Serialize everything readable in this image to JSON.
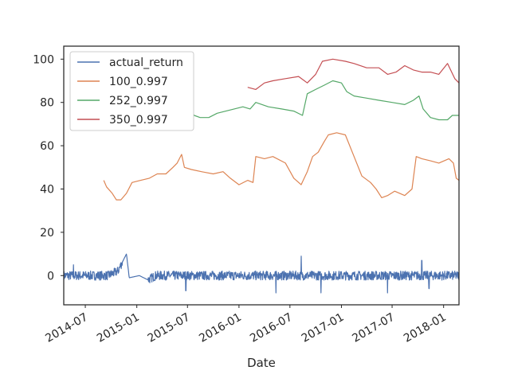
{
  "chart_data": {
    "type": "line",
    "title": "",
    "xlabel": "Date",
    "ylabel": "",
    "x_range": [
      "2014-04-15",
      "2018-02-25"
    ],
    "ylim": [
      -13.5,
      106
    ],
    "grid": false,
    "legend_position": "top-left",
    "x_tick_labels": [
      "2014-07",
      "2015-01",
      "2015-07",
      "2016-01",
      "2016-07",
      "2017-01",
      "2017-07",
      "2018-01"
    ],
    "x_tick_dates": [
      "2014-07-01",
      "2015-01-01",
      "2015-07-01",
      "2016-01-01",
      "2016-07-01",
      "2017-01-01",
      "2017-07-01",
      "2018-01-01"
    ],
    "y_ticks": [
      0,
      20,
      40,
      60,
      80,
      100
    ],
    "series": [
      {
        "name": "actual_return",
        "color": "#4c72b0",
        "noise": true,
        "points": [
          [
            "2014-04-15",
            0
          ],
          [
            "2014-09-20",
            0
          ],
          [
            "2014-10-25",
            2
          ],
          [
            "2014-11-25",
            10
          ],
          [
            "2014-12-05",
            -1
          ],
          [
            "2015-01-10",
            0
          ],
          [
            "2015-02-10",
            -2
          ],
          [
            "2015-03-10",
            0
          ],
          [
            "2016-06-01",
            0
          ],
          [
            "2016-12-15",
            0
          ],
          [
            "2017-06-01",
            0
          ],
          [
            "2018-02-25",
            0
          ]
        ],
        "spikes": [
          [
            "2014-05-20",
            5
          ],
          [
            "2015-06-25",
            -7
          ],
          [
            "2016-05-12",
            -8
          ],
          [
            "2016-08-10",
            9
          ],
          [
            "2016-10-20",
            -8
          ],
          [
            "2017-06-15",
            -8
          ],
          [
            "2017-10-15",
            7
          ],
          [
            "2017-11-10",
            -6
          ]
        ]
      },
      {
        "name": "100_0.997",
        "color": "#dd8452",
        "points": [
          [
            "2014-09-05",
            44
          ],
          [
            "2014-09-15",
            41
          ],
          [
            "2014-10-05",
            38
          ],
          [
            "2014-10-20",
            35
          ],
          [
            "2014-11-05",
            35
          ],
          [
            "2014-11-25",
            38
          ],
          [
            "2014-12-15",
            43
          ],
          [
            "2015-01-15",
            44
          ],
          [
            "2015-02-15",
            45
          ],
          [
            "2015-03-15",
            47
          ],
          [
            "2015-04-15",
            47
          ],
          [
            "2015-05-10",
            50
          ],
          [
            "2015-05-25",
            52
          ],
          [
            "2015-06-10",
            56
          ],
          [
            "2015-06-20",
            50
          ],
          [
            "2015-07-15",
            49
          ],
          [
            "2015-08-20",
            48
          ],
          [
            "2015-10-01",
            47
          ],
          [
            "2015-11-05",
            48
          ],
          [
            "2015-12-01",
            45
          ],
          [
            "2016-01-01",
            42
          ],
          [
            "2016-02-01",
            44
          ],
          [
            "2016-02-20",
            43
          ],
          [
            "2016-03-01",
            55
          ],
          [
            "2016-04-01",
            54
          ],
          [
            "2016-05-01",
            55
          ],
          [
            "2016-06-15",
            52
          ],
          [
            "2016-07-15",
            45
          ],
          [
            "2016-08-10",
            42
          ],
          [
            "2016-09-01",
            48
          ],
          [
            "2016-09-20",
            55
          ],
          [
            "2016-10-10",
            57
          ],
          [
            "2016-11-01",
            62
          ],
          [
            "2016-11-15",
            65
          ],
          [
            "2016-12-15",
            66
          ],
          [
            "2017-01-15",
            65
          ],
          [
            "2017-02-15",
            55
          ],
          [
            "2017-03-15",
            46
          ],
          [
            "2017-04-15",
            43
          ],
          [
            "2017-05-05",
            40
          ],
          [
            "2017-05-25",
            36
          ],
          [
            "2017-06-15",
            37
          ],
          [
            "2017-07-10",
            39
          ],
          [
            "2017-08-15",
            37
          ],
          [
            "2017-09-10",
            40
          ],
          [
            "2017-09-25",
            55
          ],
          [
            "2017-10-15",
            54
          ],
          [
            "2017-11-15",
            53
          ],
          [
            "2017-12-15",
            52
          ],
          [
            "2018-01-20",
            54
          ],
          [
            "2018-02-05",
            52
          ],
          [
            "2018-02-15",
            45
          ],
          [
            "2018-02-25",
            44
          ]
        ]
      },
      {
        "name": "252_0.997",
        "color": "#55a868",
        "points": [
          [
            "2015-07-10",
            77
          ],
          [
            "2015-07-25",
            74
          ],
          [
            "2015-08-15",
            73
          ],
          [
            "2015-09-15",
            73
          ],
          [
            "2015-10-15",
            75
          ],
          [
            "2015-11-15",
            76
          ],
          [
            "2015-12-15",
            77
          ],
          [
            "2016-01-15",
            78
          ],
          [
            "2016-02-10",
            77
          ],
          [
            "2016-03-01",
            80
          ],
          [
            "2016-04-15",
            78
          ],
          [
            "2016-06-01",
            77
          ],
          [
            "2016-07-15",
            76
          ],
          [
            "2016-08-15",
            74
          ],
          [
            "2016-09-01",
            84
          ],
          [
            "2016-10-01",
            86
          ],
          [
            "2016-11-01",
            88
          ],
          [
            "2016-12-01",
            90
          ],
          [
            "2017-01-01",
            89
          ],
          [
            "2017-01-20",
            85
          ],
          [
            "2017-02-15",
            83
          ],
          [
            "2017-04-01",
            82
          ],
          [
            "2017-05-15",
            81
          ],
          [
            "2017-07-01",
            80
          ],
          [
            "2017-08-15",
            79
          ],
          [
            "2017-09-15",
            81
          ],
          [
            "2017-10-05",
            83
          ],
          [
            "2017-10-20",
            77
          ],
          [
            "2017-11-15",
            73
          ],
          [
            "2017-12-15",
            72
          ],
          [
            "2018-01-15",
            72
          ],
          [
            "2018-02-01",
            74
          ],
          [
            "2018-02-25",
            74
          ]
        ]
      },
      {
        "name": "350_0.997",
        "color": "#c44e52",
        "points": [
          [
            "2016-02-01",
            87
          ],
          [
            "2016-03-01",
            86
          ],
          [
            "2016-04-01",
            89
          ],
          [
            "2016-05-01",
            90
          ],
          [
            "2016-06-15",
            91
          ],
          [
            "2016-08-01",
            92
          ],
          [
            "2016-09-01",
            89
          ],
          [
            "2016-10-01",
            93
          ],
          [
            "2016-10-25",
            99
          ],
          [
            "2016-12-01",
            100
          ],
          [
            "2017-01-15",
            99
          ],
          [
            "2017-02-15",
            98
          ],
          [
            "2017-04-01",
            96
          ],
          [
            "2017-05-15",
            96
          ],
          [
            "2017-06-15",
            93
          ],
          [
            "2017-07-15",
            94
          ],
          [
            "2017-08-15",
            97
          ],
          [
            "2017-09-15",
            95
          ],
          [
            "2017-10-15",
            94
          ],
          [
            "2017-11-15",
            94
          ],
          [
            "2017-12-15",
            93
          ],
          [
            "2018-01-15",
            98
          ],
          [
            "2018-02-10",
            91
          ],
          [
            "2018-02-25",
            89
          ]
        ]
      }
    ]
  }
}
